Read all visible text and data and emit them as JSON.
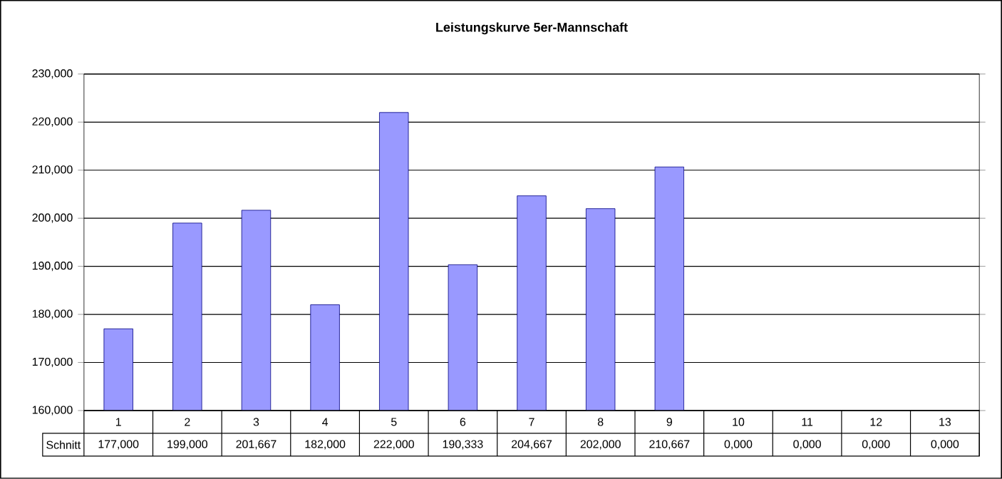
{
  "chart_data": {
    "type": "bar",
    "title": "Leistungskurve 5er-Mannschaft",
    "categories": [
      "1",
      "2",
      "3",
      "4",
      "5",
      "6",
      "7",
      "8",
      "9",
      "10",
      "11",
      "12",
      "13"
    ],
    "series": [
      {
        "name": "Schnitt",
        "color": "#9999ff",
        "values": [
          177,
          199,
          201.667,
          182,
          222,
          190.333,
          204.667,
          202,
          210.667,
          null,
          null,
          null,
          null
        ],
        "value_labels": [
          "177,000",
          "199,000",
          "201,667",
          "182,000",
          "222,000",
          "190,333",
          "204,667",
          "202,000",
          "210,667",
          "0,000",
          "0,000",
          "0,000",
          "0,000"
        ]
      }
    ],
    "ylim": [
      160,
      230
    ],
    "yticks": [
      {
        "value": 160,
        "label": "160,000"
      },
      {
        "value": 170,
        "label": "170,000"
      },
      {
        "value": 180,
        "label": "180,000"
      },
      {
        "value": 190,
        "label": "190,000"
      },
      {
        "value": 200,
        "label": "200,000"
      },
      {
        "value": 210,
        "label": "210,000"
      },
      {
        "value": 220,
        "label": "220,000"
      },
      {
        "value": 230,
        "label": "230,000"
      }
    ],
    "grid": "y",
    "legend": false
  }
}
